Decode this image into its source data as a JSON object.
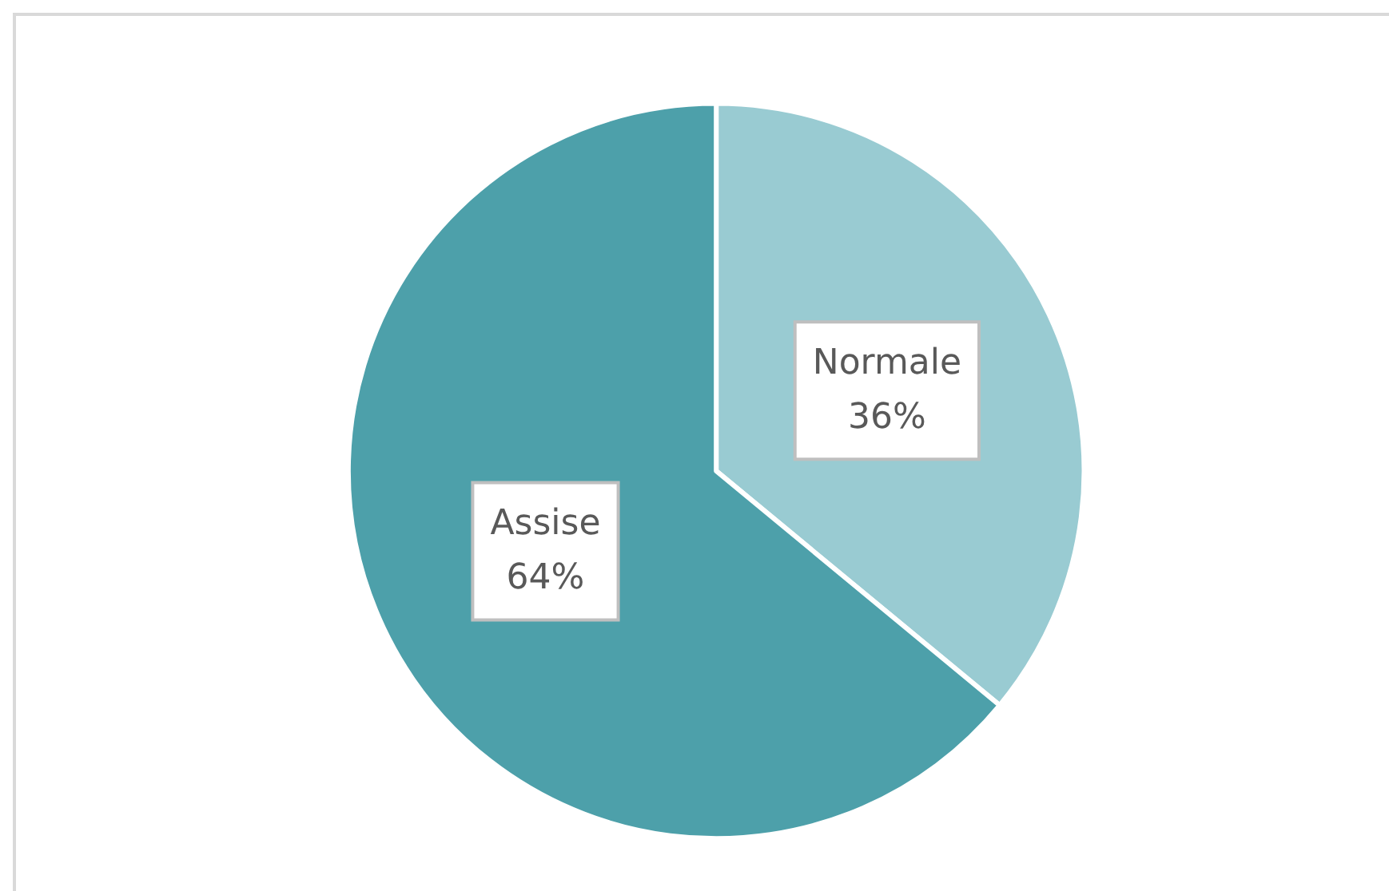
{
  "chart_data": {
    "type": "pie",
    "categories": [
      "Normale",
      "Assise"
    ],
    "values": [
      36,
      64
    ],
    "colors": [
      "#99cbd2",
      "#4da0aa"
    ],
    "value_labels": [
      "36%",
      "64%"
    ]
  }
}
